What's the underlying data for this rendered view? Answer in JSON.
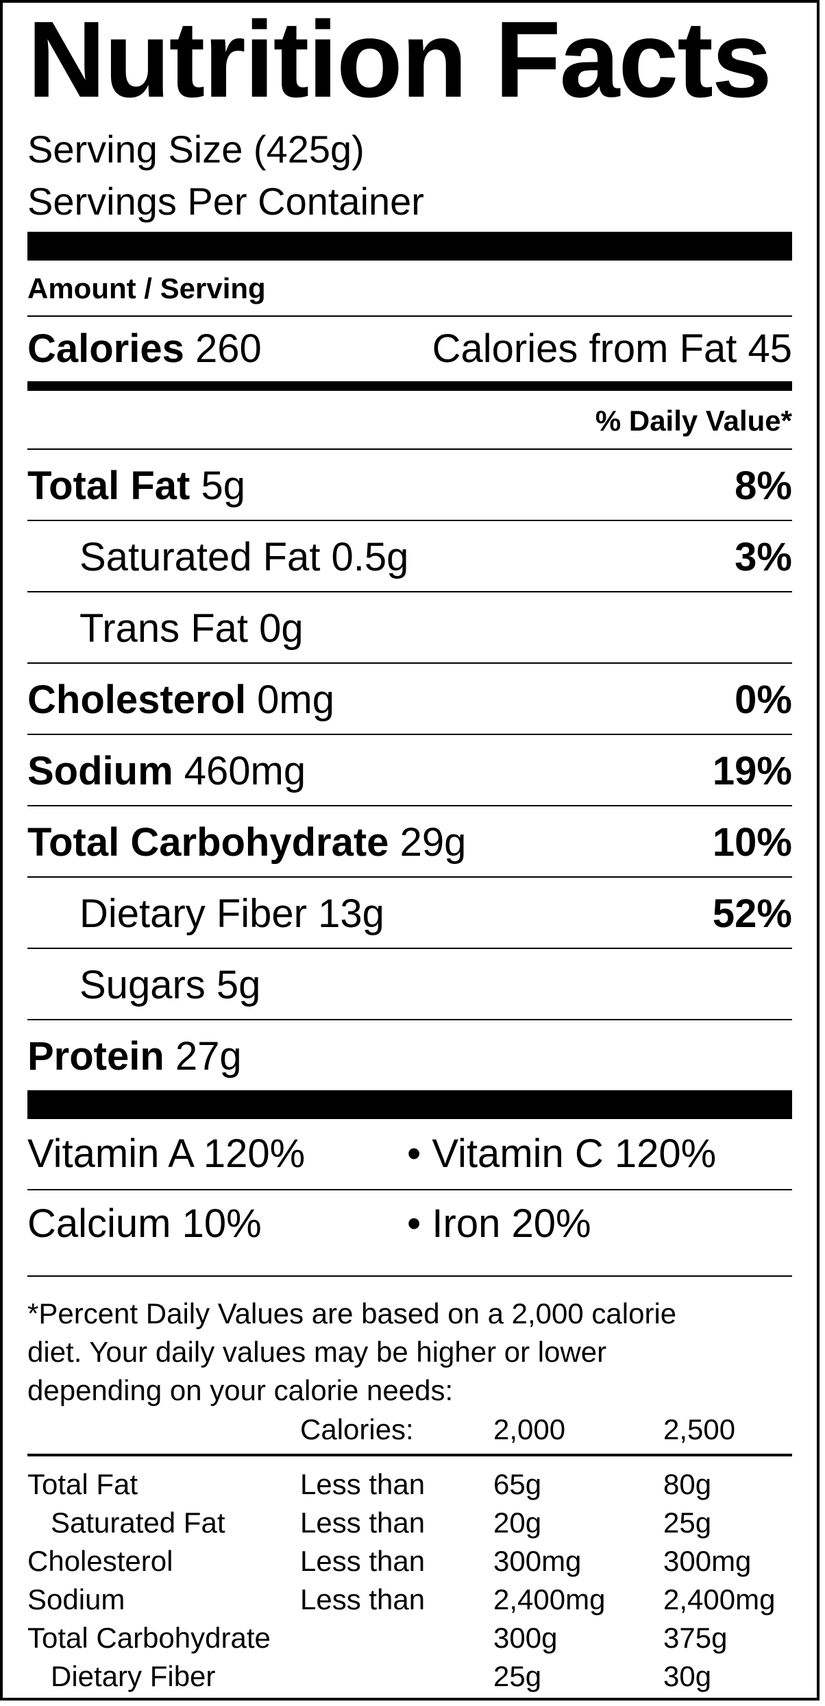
{
  "title": "Nutrition Facts",
  "serving_size": "Serving Size (425g)",
  "servings_per_container": "Servings Per Container",
  "amount_per_serving": "Amount / Serving",
  "calories": {
    "label": "Calories",
    "value": "260",
    "from_fat": "Calories from Fat 45"
  },
  "daily_value_header": "% Daily Value*",
  "nutrients": [
    {
      "name": "Total Fat",
      "amount": "5g",
      "dv": "8%"
    },
    {
      "name": "Saturated Fat",
      "amount": "0.5g",
      "dv": "3%"
    },
    {
      "name": "Trans Fat",
      "amount": "0g",
      "dv": ""
    },
    {
      "name": "Cholesterol",
      "amount": "0mg",
      "dv": "0%"
    },
    {
      "name": "Sodium",
      "amount": "460mg",
      "dv": "19%"
    },
    {
      "name": "Total Carbohydrate",
      "amount": "29g",
      "dv": "10%"
    },
    {
      "name": "Dietary Fiber",
      "amount": "13g",
      "dv": "52%"
    },
    {
      "name": "Sugars",
      "amount": "5g",
      "dv": ""
    },
    {
      "name": "Protein",
      "amount": "27g",
      "dv": ""
    }
  ],
  "vitamins": {
    "vitamin_a": "Vitamin A 120%",
    "vitamin_c": "• Vitamin C 120%",
    "calcium": "Calcium 10%",
    "iron": "• Iron 20%"
  },
  "footnote": {
    "line1": "*Percent Daily Values are based on a 2,000 calorie",
    "line2": "diet. Your daily values may be higher or lower",
    "line3": "depending on your calorie needs:"
  },
  "daily_table": {
    "header": {
      "label": "Calories:",
      "col1": "2,000",
      "col2": "2,500"
    },
    "rows": [
      {
        "name": "Total Fat",
        "qualifier": "Less than",
        "col1": "65g",
        "col2": "80g"
      },
      {
        "name": "Saturated Fat",
        "qualifier": "Less than",
        "col1": "20g",
        "col2": "25g"
      },
      {
        "name": "Cholesterol",
        "qualifier": "Less than",
        "col1": "300mg",
        "col2": "300mg"
      },
      {
        "name": "Sodium",
        "qualifier": "Less than",
        "col1": "2,400mg",
        "col2": "2,400mg"
      },
      {
        "name": "Total Carbohydrate",
        "qualifier": "",
        "col1": "300g",
        "col2": "375g"
      },
      {
        "name": "Dietary Fiber",
        "qualifier": "",
        "col1": "25g",
        "col2": "30g"
      }
    ]
  }
}
